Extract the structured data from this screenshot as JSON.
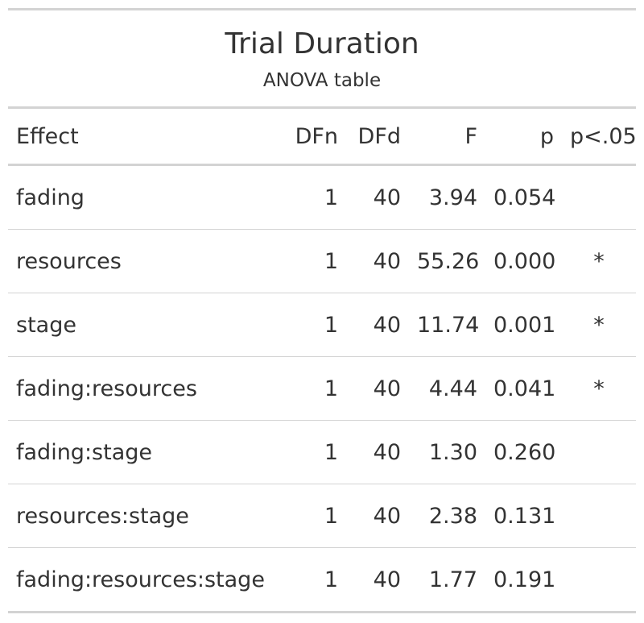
{
  "header": {
    "title": "Trial Duration",
    "subtitle": "ANOVA table"
  },
  "table": {
    "columns": [
      "Effect",
      "DFn",
      "DFd",
      "F",
      "p",
      "p<.05"
    ],
    "rows": [
      [
        "fading",
        "1",
        "40",
        "3.94",
        "0.054",
        ""
      ],
      [
        "resources",
        "1",
        "40",
        "55.26",
        "0.000",
        "*"
      ],
      [
        "stage",
        "1",
        "40",
        "11.74",
        "0.001",
        "*"
      ],
      [
        "fading:resources",
        "1",
        "40",
        "4.44",
        "0.041",
        "*"
      ],
      [
        "fading:stage",
        "1",
        "40",
        "1.30",
        "0.260",
        ""
      ],
      [
        "resources:stage",
        "1",
        "40",
        "2.38",
        "0.131",
        ""
      ],
      [
        "fading:resources:stage",
        "1",
        "40",
        "1.77",
        "0.191",
        ""
      ]
    ]
  }
}
